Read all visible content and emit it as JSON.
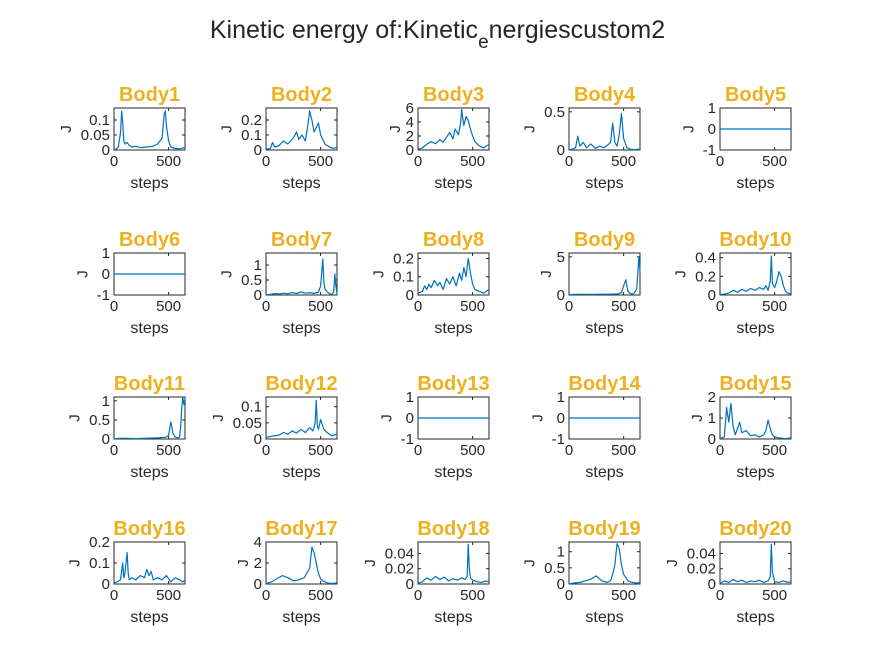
{
  "figure": {
    "title_parts": [
      "Kinetic energy of:Kinetic",
      "e",
      "nergiescustom2"
    ],
    "title_color": "#262626",
    "panel_title_color": "#EDB120",
    "line_color": "#0072BD",
    "axis_color": "#262626"
  },
  "chart_data": [
    {
      "type": "line",
      "title": "Body1",
      "xlabel": "steps",
      "ylabel": "J",
      "xlim": [
        0,
        650
      ],
      "ylim": [
        0,
        0.14
      ],
      "xticks": [
        0,
        500
      ],
      "xtick_labels": [
        "0",
        "500"
      ],
      "yticks": [
        0,
        0.05,
        0.1
      ],
      "ytick_labels": [
        "0",
        "0.05",
        "0.1"
      ],
      "x": [
        0,
        20,
        40,
        60,
        70,
        80,
        90,
        100,
        120,
        140,
        160,
        200,
        250,
        300,
        350,
        400,
        440,
        460,
        470,
        480,
        500,
        520,
        560,
        600,
        650
      ],
      "y": [
        0.002,
        0.003,
        0.01,
        0.06,
        0.13,
        0.09,
        0.03,
        0.02,
        0.025,
        0.015,
        0.01,
        0.012,
        0.008,
        0.01,
        0.012,
        0.02,
        0.04,
        0.12,
        0.13,
        0.08,
        0.03,
        0.01,
        0.005,
        0.004,
        0.008
      ]
    },
    {
      "type": "line",
      "title": "Body2",
      "xlabel": "steps",
      "ylabel": "J",
      "xlim": [
        0,
        650
      ],
      "ylim": [
        0,
        0.28
      ],
      "xticks": [
        0,
        500
      ],
      "xtick_labels": [
        "0",
        "500"
      ],
      "yticks": [
        0,
        0.1,
        0.2
      ],
      "ytick_labels": [
        "0",
        "0.1",
        "0.2"
      ],
      "x": [
        0,
        40,
        60,
        80,
        120,
        160,
        200,
        250,
        280,
        300,
        330,
        360,
        380,
        400,
        420,
        440,
        460,
        480,
        500,
        540,
        580,
        620,
        650
      ],
      "y": [
        0.005,
        0.01,
        0.05,
        0.02,
        0.03,
        0.06,
        0.04,
        0.08,
        0.12,
        0.07,
        0.1,
        0.06,
        0.15,
        0.26,
        0.2,
        0.12,
        0.15,
        0.18,
        0.1,
        0.04,
        0.02,
        0.01,
        0.02
      ]
    },
    {
      "type": "line",
      "title": "Body3",
      "xlabel": "steps",
      "ylabel": "J",
      "xlim": [
        0,
        650
      ],
      "ylim": [
        0,
        6
      ],
      "xticks": [
        0,
        500
      ],
      "xtick_labels": [
        "0",
        "500"
      ],
      "yticks": [
        0,
        2,
        4,
        6
      ],
      "ytick_labels": [
        "0",
        "2",
        "4",
        "6"
      ],
      "x": [
        0,
        40,
        80,
        120,
        160,
        200,
        230,
        260,
        290,
        320,
        340,
        370,
        390,
        400,
        410,
        420,
        440,
        460,
        480,
        500,
        520,
        560,
        600,
        650
      ],
      "y": [
        0.1,
        0.3,
        0.8,
        1.2,
        0.9,
        1.5,
        1.1,
        1.8,
        2.5,
        1.6,
        3.0,
        2.2,
        3.8,
        5.8,
        4.5,
        3.5,
        4.8,
        4.2,
        3.0,
        2.0,
        1.2,
        0.6,
        0.3,
        0.8
      ]
    },
    {
      "type": "line",
      "title": "Body4",
      "xlabel": "steps",
      "ylabel": "J",
      "xlim": [
        0,
        650
      ],
      "ylim": [
        0,
        0.55
      ],
      "xticks": [
        0,
        500
      ],
      "xtick_labels": [
        "0",
        "500"
      ],
      "yticks": [
        0,
        0.5
      ],
      "ytick_labels": [
        "0",
        "0.5"
      ],
      "x": [
        0,
        30,
        60,
        80,
        100,
        130,
        160,
        200,
        240,
        280,
        320,
        350,
        380,
        400,
        420,
        440,
        460,
        480,
        500,
        530,
        560,
        600,
        650
      ],
      "y": [
        0.005,
        0.01,
        0.03,
        0.18,
        0.05,
        0.1,
        0.03,
        0.08,
        0.02,
        0.05,
        0.03,
        0.06,
        0.1,
        0.35,
        0.1,
        0.05,
        0.2,
        0.48,
        0.15,
        0.03,
        0.01,
        0.005,
        0.01
      ]
    },
    {
      "type": "line",
      "title": "Body5",
      "xlabel": "steps",
      "ylabel": "J",
      "xlim": [
        0,
        650
      ],
      "ylim": [
        -1,
        1
      ],
      "xticks": [
        0,
        500
      ],
      "xtick_labels": [
        "0",
        "500"
      ],
      "yticks": [
        -1,
        0,
        1
      ],
      "ytick_labels": [
        "-1",
        "0",
        "1"
      ],
      "x": [
        0,
        650
      ],
      "y": [
        0,
        0
      ]
    },
    {
      "type": "line",
      "title": "Body6",
      "xlabel": "steps",
      "ylabel": "J",
      "xlim": [
        0,
        650
      ],
      "ylim": [
        -1,
        1
      ],
      "xticks": [
        0,
        500
      ],
      "xtick_labels": [
        "0",
        "500"
      ],
      "yticks": [
        -1,
        0,
        1
      ],
      "ytick_labels": [
        "-1",
        "0",
        "1"
      ],
      "x": [
        0,
        650
      ],
      "y": [
        0,
        0
      ]
    },
    {
      "type": "line",
      "title": "Body7",
      "xlabel": "steps",
      "ylabel": "J",
      "xlim": [
        0,
        650
      ],
      "ylim": [
        0,
        1.4
      ],
      "xticks": [
        0,
        500
      ],
      "xtick_labels": [
        "0",
        "500"
      ],
      "yticks": [
        0,
        0.5,
        1
      ],
      "ytick_labels": [
        "0",
        "0.5",
        "1"
      ],
      "x": [
        0,
        40,
        80,
        120,
        160,
        200,
        240,
        280,
        320,
        360,
        400,
        440,
        480,
        500,
        520,
        530,
        540,
        560,
        580,
        600,
        620,
        630,
        640,
        650
      ],
      "y": [
        0.01,
        0.02,
        0.05,
        0.03,
        0.06,
        0.04,
        0.08,
        0.05,
        0.1,
        0.06,
        0.08,
        0.05,
        0.1,
        0.3,
        1.2,
        0.4,
        0.2,
        0.1,
        0.05,
        0.02,
        0.1,
        0.7,
        0.3,
        0.05
      ]
    },
    {
      "type": "line",
      "title": "Body8",
      "xlabel": "steps",
      "ylabel": "J",
      "xlim": [
        0,
        650
      ],
      "ylim": [
        0,
        0.23
      ],
      "xticks": [
        0,
        500
      ],
      "xtick_labels": [
        "0",
        "500"
      ],
      "yticks": [
        0,
        0.1,
        0.2
      ],
      "ytick_labels": [
        "0",
        "0.1",
        "0.2"
      ],
      "x": [
        0,
        40,
        60,
        80,
        100,
        120,
        150,
        180,
        200,
        230,
        260,
        290,
        320,
        350,
        380,
        400,
        420,
        440,
        460,
        480,
        500,
        520,
        560,
        600,
        650
      ],
      "y": [
        0.01,
        0.02,
        0.05,
        0.03,
        0.06,
        0.04,
        0.08,
        0.05,
        0.07,
        0.03,
        0.09,
        0.06,
        0.1,
        0.05,
        0.12,
        0.08,
        0.15,
        0.1,
        0.2,
        0.12,
        0.06,
        0.03,
        0.02,
        0.01,
        0.03
      ]
    },
    {
      "type": "line",
      "title": "Body9",
      "xlabel": "steps",
      "ylabel": "J",
      "xlim": [
        0,
        650
      ],
      "ylim": [
        0,
        5.5
      ],
      "xticks": [
        0,
        500
      ],
      "xtick_labels": [
        "0",
        "500"
      ],
      "yticks": [
        0,
        5
      ],
      "ytick_labels": [
        "0",
        "5"
      ],
      "x": [
        0,
        100,
        200,
        300,
        400,
        450,
        480,
        500,
        520,
        540,
        560,
        580,
        600,
        620,
        640,
        650
      ],
      "y": [
        0.05,
        0.1,
        0.08,
        0.1,
        0.12,
        0.15,
        0.3,
        1.2,
        2.0,
        0.5,
        0.2,
        0.1,
        0.3,
        0.8,
        5.0,
        3.0
      ]
    },
    {
      "type": "line",
      "title": "Body10",
      "xlabel": "steps",
      "ylabel": "J",
      "xlim": [
        0,
        650
      ],
      "ylim": [
        0,
        0.45
      ],
      "xticks": [
        0,
        500
      ],
      "xtick_labels": [
        "0",
        "500"
      ],
      "yticks": [
        0,
        0.2,
        0.4
      ],
      "ytick_labels": [
        "0",
        "0.2",
        "0.4"
      ],
      "x": [
        0,
        40,
        80,
        120,
        160,
        200,
        240,
        280,
        320,
        360,
        400,
        420,
        440,
        460,
        470,
        480,
        500,
        520,
        540,
        560,
        580,
        600,
        620,
        650
      ],
      "y": [
        0.005,
        0.01,
        0.02,
        0.05,
        0.03,
        0.06,
        0.04,
        0.07,
        0.05,
        0.08,
        0.06,
        0.1,
        0.05,
        0.15,
        0.42,
        0.12,
        0.08,
        0.15,
        0.25,
        0.2,
        0.1,
        0.04,
        0.02,
        0.01
      ]
    },
    {
      "type": "line",
      "title": "Body11",
      "xlabel": "steps",
      "ylabel": "J",
      "xlim": [
        0,
        650
      ],
      "ylim": [
        0,
        1.1
      ],
      "xticks": [
        0,
        500
      ],
      "xtick_labels": [
        "0",
        "500"
      ],
      "yticks": [
        0,
        0.5,
        1
      ],
      "ytick_labels": [
        "0",
        "0.5",
        "1"
      ],
      "x": [
        0,
        100,
        200,
        300,
        400,
        450,
        480,
        500,
        520,
        540,
        560,
        580,
        600,
        610,
        620,
        630,
        640,
        650
      ],
      "y": [
        0.01,
        0.02,
        0.01,
        0.02,
        0.03,
        0.04,
        0.05,
        0.1,
        0.45,
        0.15,
        0.05,
        0.03,
        0.05,
        0.3,
        0.8,
        1.1,
        0.9,
        1.05
      ]
    },
    {
      "type": "line",
      "title": "Body12",
      "xlabel": "steps",
      "ylabel": "J",
      "xlim": [
        0,
        650
      ],
      "ylim": [
        0,
        0.13
      ],
      "xticks": [
        0,
        500
      ],
      "xtick_labels": [
        "0",
        "500"
      ],
      "yticks": [
        0,
        0.05,
        0.1
      ],
      "ytick_labels": [
        "0",
        "0.05",
        "0.1"
      ],
      "x": [
        0,
        40,
        80,
        120,
        160,
        200,
        240,
        280,
        320,
        360,
        400,
        430,
        450,
        460,
        470,
        480,
        500,
        530,
        560,
        600,
        650
      ],
      "y": [
        0.005,
        0.008,
        0.01,
        0.012,
        0.02,
        0.015,
        0.025,
        0.018,
        0.03,
        0.02,
        0.035,
        0.025,
        0.05,
        0.12,
        0.04,
        0.03,
        0.06,
        0.03,
        0.02,
        0.01,
        0.015
      ]
    },
    {
      "type": "line",
      "title": "Body13",
      "xlabel": "steps",
      "ylabel": "J",
      "xlim": [
        0,
        650
      ],
      "ylim": [
        -1,
        1
      ],
      "xticks": [
        0,
        500
      ],
      "xtick_labels": [
        "0",
        "500"
      ],
      "yticks": [
        -1,
        0,
        1
      ],
      "ytick_labels": [
        "-1",
        "0",
        "1"
      ],
      "x": [
        0,
        650
      ],
      "y": [
        0,
        0
      ]
    },
    {
      "type": "line",
      "title": "Body14",
      "xlabel": "steps",
      "ylabel": "J",
      "xlim": [
        0,
        650
      ],
      "ylim": [
        -1,
        1
      ],
      "xticks": [
        0,
        500
      ],
      "xtick_labels": [
        "0",
        "500"
      ],
      "yticks": [
        -1,
        0,
        1
      ],
      "ytick_labels": [
        "-1",
        "0",
        "1"
      ],
      "x": [
        0,
        650
      ],
      "y": [
        0,
        0
      ]
    },
    {
      "type": "line",
      "title": "Body15",
      "xlabel": "steps",
      "ylabel": "J",
      "xlim": [
        0,
        650
      ],
      "ylim": [
        0,
        2
      ],
      "xticks": [
        0,
        500
      ],
      "xtick_labels": [
        "0",
        "500"
      ],
      "yticks": [
        0,
        1,
        2
      ],
      "ytick_labels": [
        "0",
        "1",
        "2"
      ],
      "x": [
        0,
        40,
        60,
        80,
        100,
        120,
        140,
        160,
        180,
        200,
        240,
        280,
        320,
        360,
        400,
        420,
        440,
        460,
        480,
        500,
        540,
        600,
        650
      ],
      "y": [
        0.02,
        0.1,
        1.5,
        0.8,
        1.7,
        0.6,
        0.2,
        0.5,
        0.8,
        0.3,
        0.4,
        0.15,
        0.2,
        0.1,
        0.2,
        0.4,
        0.9,
        0.5,
        0.2,
        0.1,
        0.05,
        0.02,
        0.05
      ]
    },
    {
      "type": "line",
      "title": "Body16",
      "xlabel": "steps",
      "ylabel": "J",
      "xlim": [
        0,
        650
      ],
      "ylim": [
        0,
        0.2
      ],
      "xticks": [
        0,
        500
      ],
      "xtick_labels": [
        "0",
        "500"
      ],
      "yticks": [
        0,
        0.1,
        0.2
      ],
      "ytick_labels": [
        "0",
        "0.1",
        "0.2"
      ],
      "x": [
        0,
        30,
        60,
        80,
        90,
        100,
        120,
        130,
        140,
        160,
        200,
        240,
        280,
        300,
        320,
        340,
        360,
        400,
        440,
        480,
        520,
        560,
        600,
        630,
        650
      ],
      "y": [
        0.005,
        0.01,
        0.02,
        0.1,
        0.03,
        0.05,
        0.15,
        0.05,
        0.02,
        0.03,
        0.02,
        0.04,
        0.03,
        0.07,
        0.04,
        0.06,
        0.02,
        0.03,
        0.02,
        0.04,
        0.01,
        0.03,
        0.02,
        0.01,
        0.02
      ]
    },
    {
      "type": "line",
      "title": "Body17",
      "xlabel": "steps",
      "ylabel": "J",
      "xlim": [
        0,
        650
      ],
      "ylim": [
        0,
        4
      ],
      "xticks": [
        0,
        500
      ],
      "xtick_labels": [
        "0",
        "500"
      ],
      "yticks": [
        0,
        2,
        4
      ],
      "ytick_labels": [
        "0",
        "2",
        "4"
      ],
      "x": [
        0,
        50,
        100,
        150,
        200,
        250,
        300,
        350,
        400,
        420,
        440,
        460,
        480,
        500,
        520,
        560,
        600,
        650
      ],
      "y": [
        0.05,
        0.2,
        0.5,
        0.8,
        0.6,
        0.3,
        0.4,
        0.6,
        1.5,
        3.5,
        3.0,
        2.0,
        1.0,
        0.5,
        0.3,
        0.1,
        0.05,
        0.1
      ]
    },
    {
      "type": "line",
      "title": "Body18",
      "xlabel": "steps",
      "ylabel": "J",
      "xlim": [
        0,
        650
      ],
      "ylim": [
        0,
        0.055
      ],
      "xticks": [
        0,
        500
      ],
      "xtick_labels": [
        "0",
        "500"
      ],
      "yticks": [
        0,
        0.02,
        0.04
      ],
      "ytick_labels": [
        "0",
        "0.02",
        "0.04"
      ],
      "x": [
        0,
        40,
        80,
        120,
        160,
        200,
        240,
        280,
        320,
        360,
        400,
        430,
        450,
        460,
        470,
        480,
        500,
        540,
        580,
        620,
        650
      ],
      "y": [
        0.001,
        0.003,
        0.008,
        0.005,
        0.01,
        0.006,
        0.009,
        0.004,
        0.007,
        0.005,
        0.008,
        0.006,
        0.01,
        0.052,
        0.02,
        0.008,
        0.005,
        0.003,
        0.002,
        0.004,
        0.003
      ]
    },
    {
      "type": "line",
      "title": "Body19",
      "xlabel": "steps",
      "ylabel": "J",
      "xlim": [
        0,
        650
      ],
      "ylim": [
        0,
        1.3
      ],
      "xticks": [
        0,
        500
      ],
      "xtick_labels": [
        "0",
        "500"
      ],
      "yticks": [
        0,
        0.5,
        1
      ],
      "ytick_labels": [
        "0",
        "0.5",
        "1"
      ],
      "x": [
        0,
        50,
        100,
        150,
        200,
        250,
        300,
        350,
        380,
        400,
        420,
        440,
        460,
        480,
        500,
        540,
        580,
        620,
        650
      ],
      "y": [
        0.01,
        0.03,
        0.05,
        0.1,
        0.15,
        0.25,
        0.1,
        0.05,
        0.1,
        0.3,
        0.6,
        1.25,
        1.1,
        0.6,
        0.3,
        0.1,
        0.05,
        0.03,
        0.05
      ]
    },
    {
      "type": "line",
      "title": "Body20",
      "xlabel": "steps",
      "ylabel": "J",
      "xlim": [
        0,
        650
      ],
      "ylim": [
        0,
        0.055
      ],
      "xticks": [
        0,
        500
      ],
      "xtick_labels": [
        "0",
        "500"
      ],
      "yticks": [
        0,
        0.02,
        0.04
      ],
      "ytick_labels": [
        "0",
        "0.02",
        "0.04"
      ],
      "x": [
        0,
        40,
        80,
        120,
        160,
        200,
        240,
        280,
        320,
        360,
        400,
        440,
        460,
        470,
        480,
        500,
        540,
        580,
        620,
        650
      ],
      "y": [
        0.001,
        0.004,
        0.002,
        0.006,
        0.003,
        0.005,
        0.002,
        0.004,
        0.003,
        0.005,
        0.002,
        0.004,
        0.01,
        0.052,
        0.015,
        0.003,
        0.002,
        0.004,
        0.002,
        0.003
      ]
    }
  ]
}
